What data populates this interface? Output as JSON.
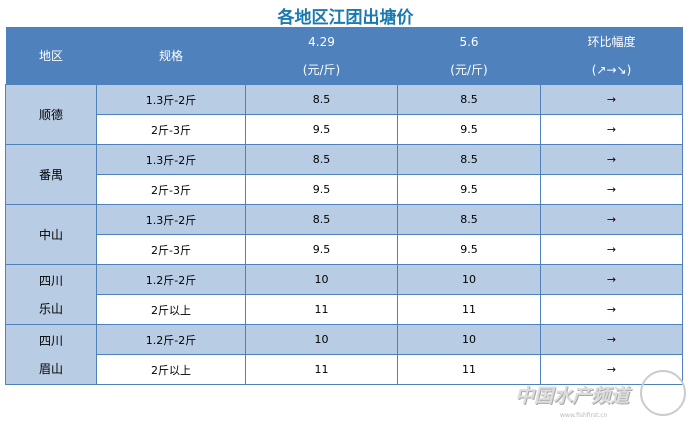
{
  "title": "各地区江团出塘价",
  "header": {
    "region": "地区",
    "spec": "规格",
    "date1": "4.29",
    "date2": "5.6",
    "unit": "(元/斤)",
    "change": "环比幅度",
    "change_sub": "(↗→↘)"
  },
  "rows": [
    {
      "region": [
        "顺德"
      ],
      "items": [
        {
          "spec": "1.3斤-2斤",
          "p1": "8.5",
          "p2": "8.5",
          "trend": "→"
        },
        {
          "spec": "2斤-3斤",
          "p1": "9.5",
          "p2": "9.5",
          "trend": "→"
        }
      ]
    },
    {
      "region": [
        "番禺"
      ],
      "items": [
        {
          "spec": "1.3斤-2斤",
          "p1": "8.5",
          "p2": "8.5",
          "trend": "→"
        },
        {
          "spec": "2斤-3斤",
          "p1": "9.5",
          "p2": "9.5",
          "trend": "→"
        }
      ]
    },
    {
      "region": [
        "中山"
      ],
      "items": [
        {
          "spec": "1.3斤-2斤",
          "p1": "8.5",
          "p2": "8.5",
          "trend": "→"
        },
        {
          "spec": "2斤-3斤",
          "p1": "9.5",
          "p2": "9.5",
          "trend": "→"
        }
      ]
    },
    {
      "region": [
        "四川",
        "乐山"
      ],
      "items": [
        {
          "spec": "1.2斤-2斤",
          "p1": "10",
          "p2": "10",
          "trend": "→"
        },
        {
          "spec": "2斤以上",
          "p1": "11",
          "p2": "11",
          "trend": "→"
        }
      ]
    },
    {
      "region": [
        "四川",
        "眉山"
      ],
      "items": [
        {
          "spec": "1.2斤-2斤",
          "p1": "10",
          "p2": "10",
          "trend": "→"
        },
        {
          "spec": "2斤以上",
          "p1": "11",
          "p2": "11",
          "trend": "→"
        }
      ]
    }
  ],
  "watermark": {
    "text": "中国水产频道",
    "url": "www.fishfirst.cn"
  }
}
